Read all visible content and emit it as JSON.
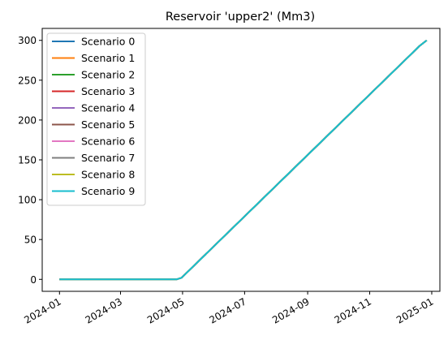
{
  "chart_data": {
    "type": "line",
    "title": "Reservoir 'upper2' (Mm3)",
    "xlabel": "",
    "ylabel": "",
    "x_type": "date",
    "xlim": [
      "2023-12-15",
      "2025-01-09"
    ],
    "ylim": [
      -15,
      315
    ],
    "x_ticks": [
      "2024-01",
      "2024-03",
      "2024-05",
      "2024-07",
      "2024-09",
      "2024-11",
      "2025-01"
    ],
    "y_ticks": [
      0,
      50,
      100,
      150,
      200,
      250,
      300
    ],
    "grid": false,
    "legend_position": "upper left",
    "points": {
      "x": [
        "2024-01-01",
        "2024-04-25",
        "2024-04-30",
        "2024-12-20",
        "2024-12-27"
      ],
      "y": [
        0,
        0,
        2,
        293,
        300
      ]
    },
    "series": [
      {
        "name": "Scenario 0",
        "color": "#1f77b4"
      },
      {
        "name": "Scenario 1",
        "color": "#ff7f0e"
      },
      {
        "name": "Scenario 2",
        "color": "#2ca02c"
      },
      {
        "name": "Scenario 3",
        "color": "#d62728"
      },
      {
        "name": "Scenario 4",
        "color": "#9467bd"
      },
      {
        "name": "Scenario 5",
        "color": "#8c564b"
      },
      {
        "name": "Scenario 6",
        "color": "#e377c2"
      },
      {
        "name": "Scenario 7",
        "color": "#7f7f7f"
      },
      {
        "name": "Scenario 8",
        "color": "#bcbd22"
      },
      {
        "name": "Scenario 9",
        "color": "#17becf"
      }
    ]
  }
}
